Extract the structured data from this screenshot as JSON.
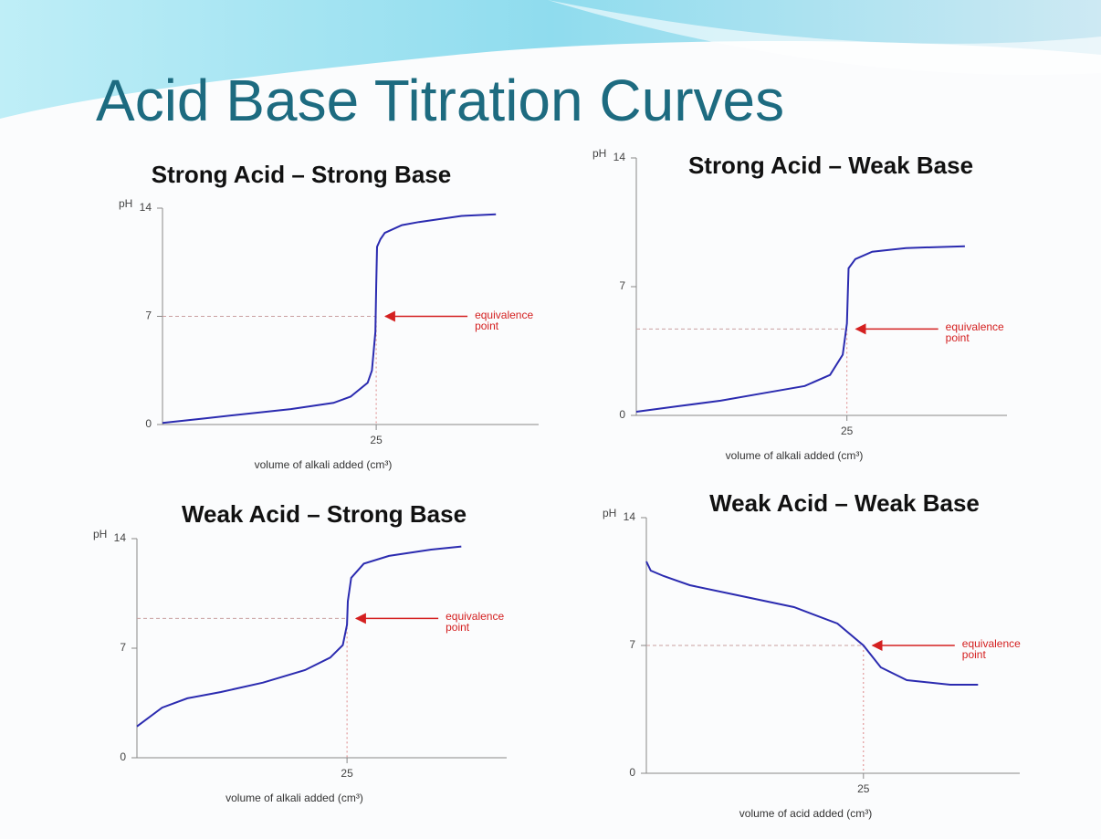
{
  "title": "Acid Base Titration Curves",
  "chart_data": [
    {
      "type": "line",
      "title": "Strong Acid – Strong Base",
      "y_label": "pH",
      "x_label": "volume of alkali added (cm³)",
      "xlim": [
        0,
        44
      ],
      "xticks": [
        25
      ],
      "ylim": [
        0,
        14
      ],
      "yticks": [
        0,
        7,
        14
      ],
      "series": [
        {
          "color": "#2b2bb0",
          "x": [
            0,
            5,
            10,
            15,
            20,
            22,
            24,
            24.5,
            24.9,
            25,
            25.1,
            25.5,
            26,
            28,
            30,
            35,
            39
          ],
          "values": [
            0.1,
            0.4,
            0.7,
            1.0,
            1.4,
            1.8,
            2.7,
            3.5,
            6,
            9,
            11.5,
            12,
            12.4,
            12.9,
            13.1,
            13.5,
            13.6
          ]
        }
      ],
      "equivalence": {
        "x": 25,
        "y": 7,
        "label": "equivalence point",
        "color": "#d42020"
      }
    },
    {
      "type": "line",
      "title": "Strong Acid – Weak Base",
      "y_label": "pH",
      "x_label": "volume of alkali added (cm³)",
      "xlim": [
        0,
        44
      ],
      "xticks": [
        25
      ],
      "ylim": [
        0,
        14
      ],
      "yticks": [
        0,
        7,
        14
      ],
      "series": [
        {
          "color": "#2b2bb0",
          "x": [
            0,
            5,
            10,
            15,
            20,
            23,
            24.5,
            25,
            25.2,
            26,
            28,
            32,
            39
          ],
          "values": [
            0.2,
            0.5,
            0.8,
            1.2,
            1.6,
            2.2,
            3.3,
            5,
            8,
            8.5,
            8.9,
            9.1,
            9.2
          ]
        }
      ],
      "equivalence": {
        "x": 25,
        "y": 4.7,
        "label": "equivalence point",
        "color": "#d42020"
      }
    },
    {
      "type": "line",
      "title": "Weak Acid – Strong Base",
      "y_label": "pH",
      "x_label": "volume of alkali added (cm³)",
      "xlim": [
        0,
        44
      ],
      "xticks": [
        25
      ],
      "ylim": [
        0,
        14
      ],
      "yticks": [
        0,
        7,
        14
      ],
      "series": [
        {
          "color": "#2b2bb0",
          "x": [
            0,
            3,
            6,
            10,
            15,
            20,
            23,
            24.5,
            25,
            25.1,
            25.5,
            27,
            30,
            35,
            38.6
          ],
          "values": [
            2,
            3.2,
            3.8,
            4.2,
            4.8,
            5.6,
            6.4,
            7.2,
            8.5,
            10,
            11.5,
            12.4,
            12.9,
            13.3,
            13.5
          ]
        }
      ],
      "equivalence": {
        "x": 25,
        "y": 8.9,
        "label": "equivalence point",
        "color": "#d42020"
      }
    },
    {
      "type": "line",
      "title": "Weak Acid – Weak Base",
      "y_label": "pH",
      "x_label": "volume of acid added (cm³)",
      "xlim": [
        0,
        43
      ],
      "xticks": [
        25
      ],
      "ylim": [
        0,
        14
      ],
      "yticks": [
        0,
        7,
        14
      ],
      "series": [
        {
          "color": "#2b2bb0",
          "x": [
            0,
            0.5,
            2,
            5,
            10,
            17,
            22,
            25,
            27,
            30,
            35,
            38.2
          ],
          "values": [
            11.6,
            11.1,
            10.8,
            10.3,
            9.8,
            9.1,
            8.2,
            7,
            5.8,
            5.1,
            4.85,
            4.85
          ]
        }
      ],
      "equivalence": {
        "x": 25,
        "y": 7,
        "label": "equivalence point",
        "color": "#d42020"
      }
    }
  ]
}
